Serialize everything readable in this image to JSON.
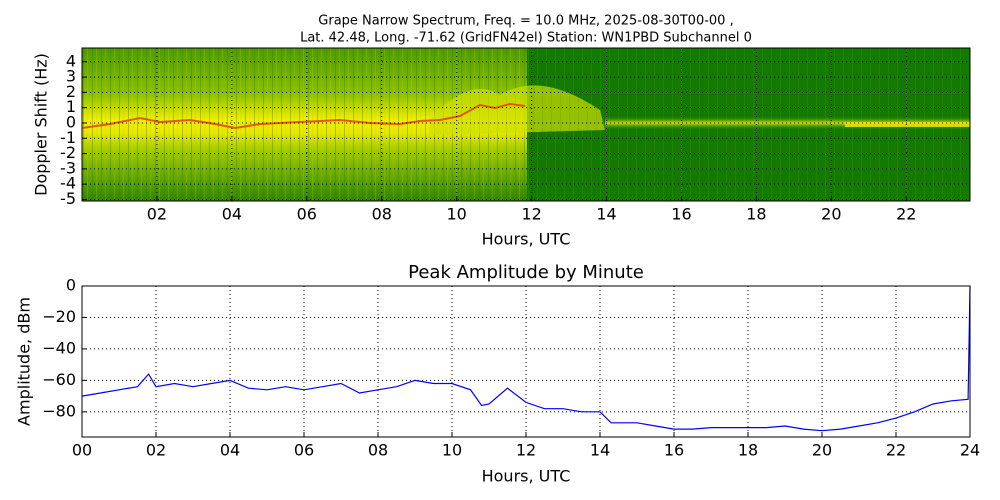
{
  "chart_data": [
    {
      "type": "spectrogram",
      "title": [
        "Grape Narrow Spectrum, Freq. = 10.0 MHz, 2025-08-30T00-00 ,",
        "Lat.  42.48, Long. -71.62 (GridFN42el) Station: WN1PBD Subchannel 0"
      ],
      "x_label": "Hours, UTC",
      "y_label": "Doppler Shift (Hz)",
      "xlim": [
        0,
        23.7
      ],
      "ylim": [
        -5.1,
        4.9
      ],
      "xticks": [
        {
          "value": 2,
          "label": "02"
        },
        {
          "value": 4,
          "label": "04"
        },
        {
          "value": 6,
          "label": "06"
        },
        {
          "value": 8,
          "label": "08"
        },
        10,
        12,
        14,
        16,
        18,
        20,
        22
      ],
      "yticks": [
        -5,
        -4,
        -3,
        -2,
        -1,
        0,
        1,
        2,
        3,
        4
      ],
      "grid": true
    },
    {
      "type": "line",
      "title": "Peak Amplitude by Minute",
      "x_label": "Hours, UTC",
      "y_label": "Amplitude, dBm",
      "xlim": [
        0,
        24
      ],
      "ylim": [
        -96,
        0
      ],
      "xticks": [
        {
          "value": 0,
          "label": "00"
        },
        {
          "value": 2,
          "label": "02"
        },
        {
          "value": 4,
          "label": "04"
        },
        {
          "value": 6,
          "label": "06"
        },
        {
          "value": 8,
          "label": "08"
        },
        10,
        12,
        14,
        16,
        18,
        20,
        22,
        24
      ],
      "yticks": [
        0,
        {
          "value": -20,
          "label": "−20"
        },
        {
          "value": -40,
          "label": "−40"
        },
        {
          "value": -60,
          "label": "−60"
        },
        {
          "value": -80,
          "label": "−80"
        }
      ],
      "grid": true,
      "color": "#0000ff",
      "x": [
        0,
        0.5,
        1,
        1.5,
        1.8,
        2,
        2.5,
        3,
        3.5,
        4,
        4.5,
        5,
        5.5,
        6,
        6.5,
        7,
        7.5,
        8,
        8.5,
        9,
        9.5,
        10,
        10.5,
        10.8,
        11,
        11.5,
        12,
        12.5,
        13,
        13.5,
        14,
        14.3,
        15,
        15.5,
        16,
        16.5,
        17,
        17.5,
        18,
        18.5,
        19,
        19.5,
        20,
        20.5,
        21,
        21.5,
        22,
        22.5,
        23,
        23.5,
        23.95,
        24
      ],
      "values": [
        -70,
        -68,
        -66,
        -64,
        -56,
        -64,
        -62,
        -64,
        -62,
        -60,
        -65,
        -66,
        -64,
        -66,
        -64,
        -62,
        -68,
        -66,
        -64,
        -60,
        -62,
        -62,
        -66,
        -76,
        -75,
        -65,
        -74,
        -78,
        -78,
        -80,
        -80,
        -87,
        -87,
        -89,
        -91,
        -91,
        -90,
        -90,
        -90,
        -90,
        -89,
        -91,
        -92,
        -91,
        -89,
        -87,
        -84,
        -80,
        -75,
        -73,
        -72,
        0
      ]
    }
  ]
}
